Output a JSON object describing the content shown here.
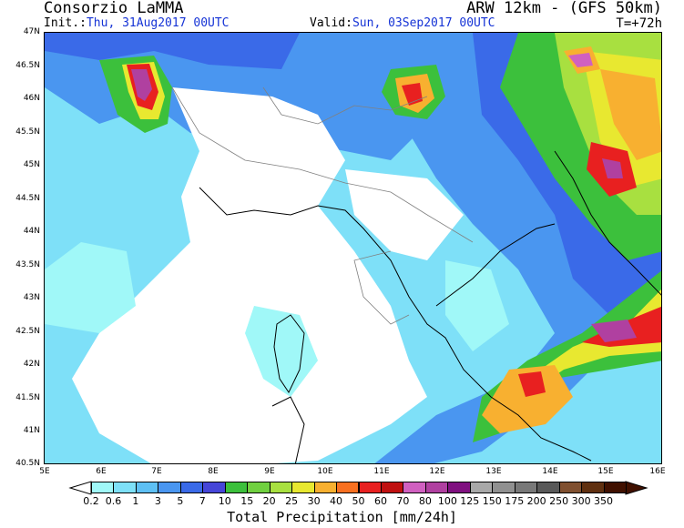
{
  "header": {
    "agency": "Consorzio LaMMA",
    "model": "ARW 12km - (GFS 50km)",
    "init_label": "Init.:",
    "init_value": "Thu, 31Aug2017 00UTC",
    "valid_label": "Valid:",
    "valid_value": "Sun, 03Sep2017 00UTC",
    "forecast_hour": "T=+72h"
  },
  "map": {
    "lon_range": [
      5,
      16
    ],
    "lat_range": [
      40.5,
      47
    ],
    "lat_ticks": [
      "47N",
      "46.5N",
      "46N",
      "45.5N",
      "45N",
      "44.5N",
      "44N",
      "43.5N",
      "43N",
      "42.5N",
      "42N",
      "41.5N",
      "41N",
      "40.5N"
    ],
    "lon_ticks": [
      "5E",
      "6E",
      "7E",
      "8E",
      "9E",
      "10E",
      "11E",
      "12E",
      "13E",
      "14E",
      "15E",
      "16E"
    ],
    "sea_color": "#ffffff"
  },
  "colorbar": {
    "title": "Total Precipitation [mm/24h]",
    "labels": [
      "0.2",
      "0.6",
      "1",
      "3",
      "5",
      "7",
      "10",
      "15",
      "20",
      "25",
      "30",
      "40",
      "50",
      "60",
      "70",
      "80",
      "100",
      "125",
      "150",
      "175",
      "200",
      "250",
      "300",
      "350"
    ],
    "colors": [
      "#a0f8f8",
      "#7ee0f8",
      "#5ec0f4",
      "#4a96f0",
      "#3a6ae8",
      "#4646d8",
      "#3cc03c",
      "#70d040",
      "#a8e040",
      "#e8e830",
      "#f8b030",
      "#f87020",
      "#e82020",
      "#c01010",
      "#d060c0",
      "#b040a0",
      "#801080",
      "#a8a8a8",
      "#909090",
      "#787878",
      "#585858",
      "#805030",
      "#603010",
      "#401000"
    ]
  }
}
